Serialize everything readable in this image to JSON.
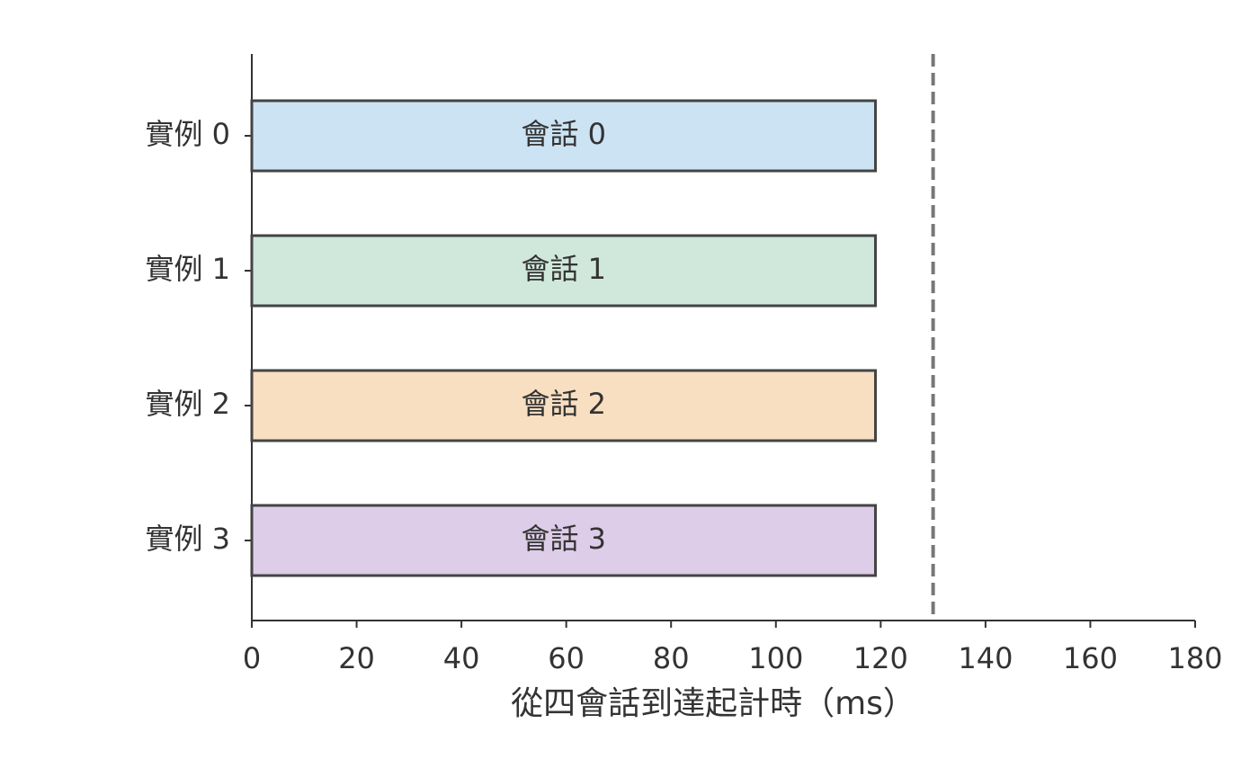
{
  "chart_data": {
    "type": "hbar",
    "categories": [
      "實例 0",
      "實例 1",
      "實例 2",
      "實例 3"
    ],
    "values": [
      119,
      119,
      119,
      119
    ],
    "bar_labels": [
      "會話 0",
      "會話 1",
      "會話 2",
      "會話 3"
    ],
    "colors": [
      "#cce3f3",
      "#d0e8dc",
      "#f8dfc1",
      "#ddcde8"
    ],
    "edge_color": "#444444",
    "xlabel": "從四會話到達起計時（ms）",
    "xlim": [
      0,
      180
    ],
    "xticks": [
      0,
      20,
      40,
      60,
      80,
      100,
      120,
      140,
      160,
      180
    ],
    "reference_line": {
      "x": 130,
      "color": "#777777",
      "dashed": true
    }
  }
}
